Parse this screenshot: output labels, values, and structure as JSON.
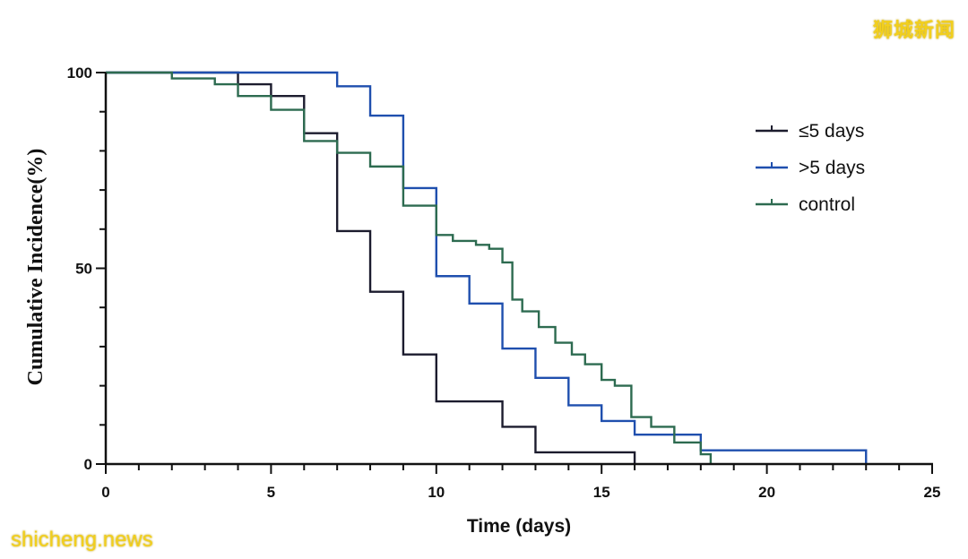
{
  "watermarks": {
    "top_right": "狮城新闻",
    "bottom_left": "shicheng.news"
  },
  "chart_data": {
    "type": "line",
    "subtype": "step",
    "title": "",
    "xlabel": "Time (days)",
    "ylabel": "Cumulative Incidence(%)",
    "xlim": [
      0,
      25
    ],
    "ylim": [
      0,
      100
    ],
    "xticks": [
      0,
      5,
      10,
      15,
      20,
      25
    ],
    "yticks": [
      0,
      50,
      100
    ],
    "grid": false,
    "legend_position": "top-right",
    "series": [
      {
        "name": "≤5 days",
        "color": "#1c1c2e",
        "x": [
          0,
          4,
          5,
          6,
          7,
          8,
          9,
          10,
          12,
          13,
          16
        ],
        "y": [
          100,
          97,
          94,
          84.5,
          59.5,
          44,
          28,
          16,
          9.5,
          3,
          0
        ]
      },
      {
        "name": ">5 days",
        "color": "#1f4fae",
        "x": [
          0,
          7,
          8,
          9,
          10,
          11,
          12,
          13,
          14,
          15,
          16,
          17,
          18,
          23
        ],
        "y": [
          100,
          96.5,
          89,
          70.5,
          48,
          41,
          29.5,
          22,
          15,
          11,
          7.5,
          7.5,
          3.5,
          0
        ]
      },
      {
        "name": "control",
        "color": "#2d6b50",
        "x": [
          0,
          2,
          3.3,
          4,
          5,
          6,
          7,
          8,
          9,
          10,
          10.5,
          11.2,
          11.6,
          12,
          12.3,
          12.6,
          13.1,
          13.6,
          14.1,
          14.5,
          15,
          15.4,
          15.9,
          16.5,
          17.2,
          18,
          18.3
        ],
        "y": [
          100,
          98.5,
          97,
          94,
          90.5,
          82.5,
          79.5,
          76,
          66,
          58.5,
          57,
          56,
          55,
          51.5,
          42,
          39,
          35,
          31,
          28,
          25.5,
          21.5,
          20,
          12,
          9.5,
          5.5,
          2.5,
          0
        ]
      }
    ]
  }
}
